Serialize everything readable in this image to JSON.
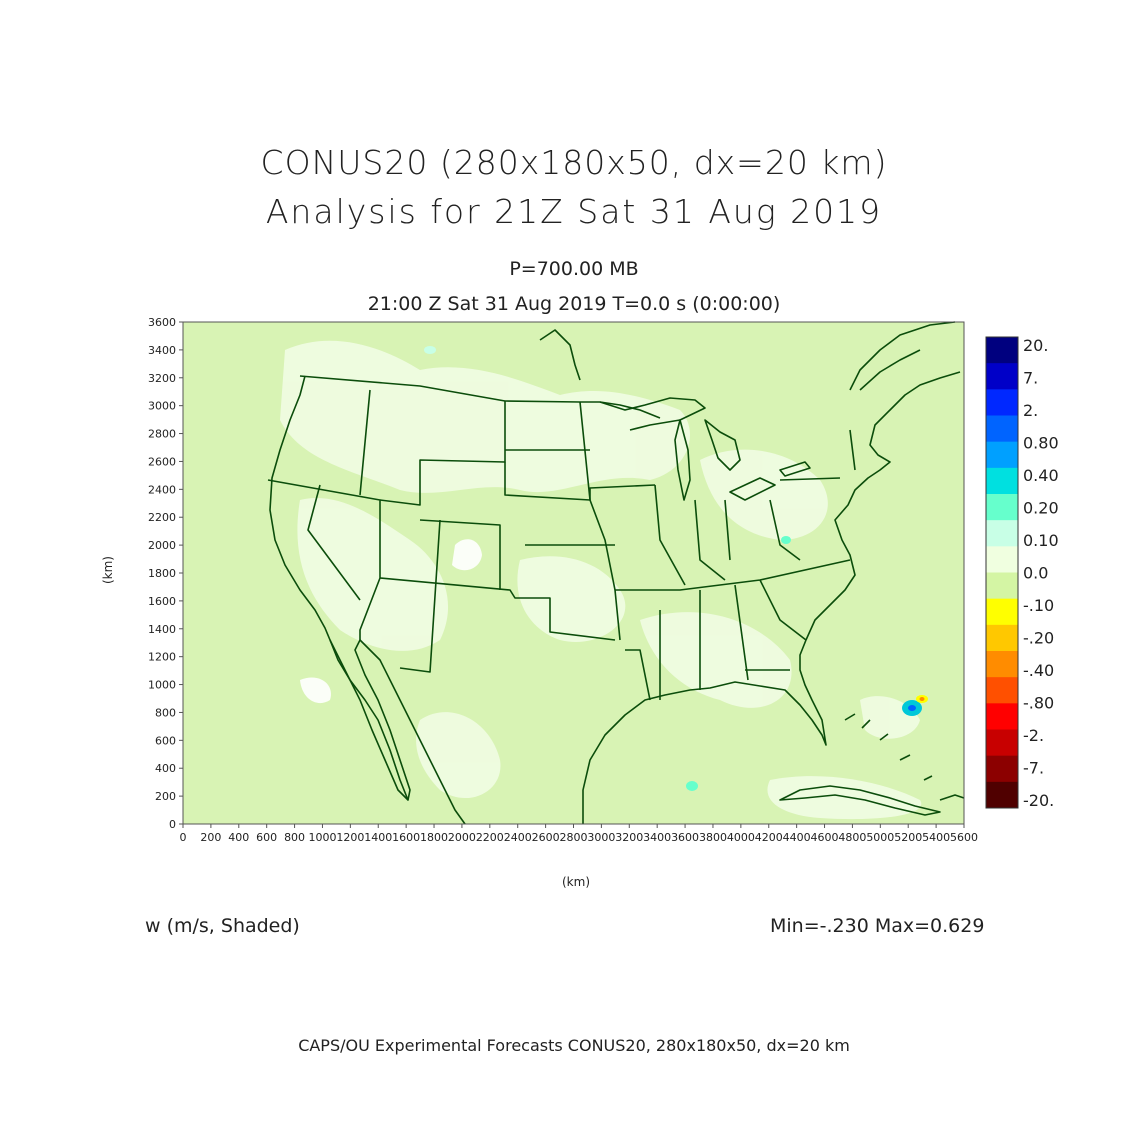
{
  "title": {
    "line1": "CONUS20 (280x180x50, dx=20 km)",
    "line2": "Analysis for 21Z Sat 31 Aug 2019"
  },
  "level_label": "P=700.00 MB",
  "valid_label": "21:00 Z Sat 31 Aug 2019   T=0.0 s (0:00:00)",
  "axes": {
    "x_label": "(km)",
    "y_label": "(km)",
    "x_ticks": [
      0,
      200,
      400,
      600,
      800,
      1000,
      1200,
      1400,
      1600,
      1800,
      2000,
      2200,
      2400,
      2600,
      2800,
      3000,
      3200,
      3400,
      3600,
      3800,
      4000,
      4200,
      4400,
      4600,
      4800,
      5000,
      5200,
      5400,
      5600
    ],
    "y_ticks": [
      0,
      200,
      400,
      600,
      800,
      1000,
      1200,
      1400,
      1600,
      1800,
      2000,
      2200,
      2400,
      2600,
      2800,
      3000,
      3200,
      3400,
      3600
    ]
  },
  "legend": {
    "labels": [
      "20.",
      "7.",
      "2.",
      "0.80",
      "0.40",
      "0.20",
      "0.10",
      "0.0",
      "-.10",
      "-.20",
      "-.40",
      "-.80",
      "-2.",
      "-7.",
      "-20."
    ],
    "colors": [
      "#00007f",
      "#0000c8",
      "#0028ff",
      "#0064ff",
      "#00a0ff",
      "#00e0e0",
      "#66ffcc",
      "#c8ffe6",
      "#f0ffe0",
      "#d4f5a4",
      "#ffff00",
      "#ffc800",
      "#ff8c00",
      "#ff5000",
      "#ff0000",
      "#c80000",
      "#8c0000",
      "#500000"
    ]
  },
  "variable_label": "w (m/s, Shaded)",
  "minmax_label": "Min=-.230 Max=0.629",
  "footer": "CAPS/OU Experimental Forecasts  CONUS20, 280x180x50, dx=20 km",
  "map": {
    "background_color": "#d8f3b4",
    "boundary_color": "#0b4d0b",
    "features": [
      "coastlines",
      "state-boundaries",
      "country-boundaries",
      "great-lakes"
    ]
  }
}
